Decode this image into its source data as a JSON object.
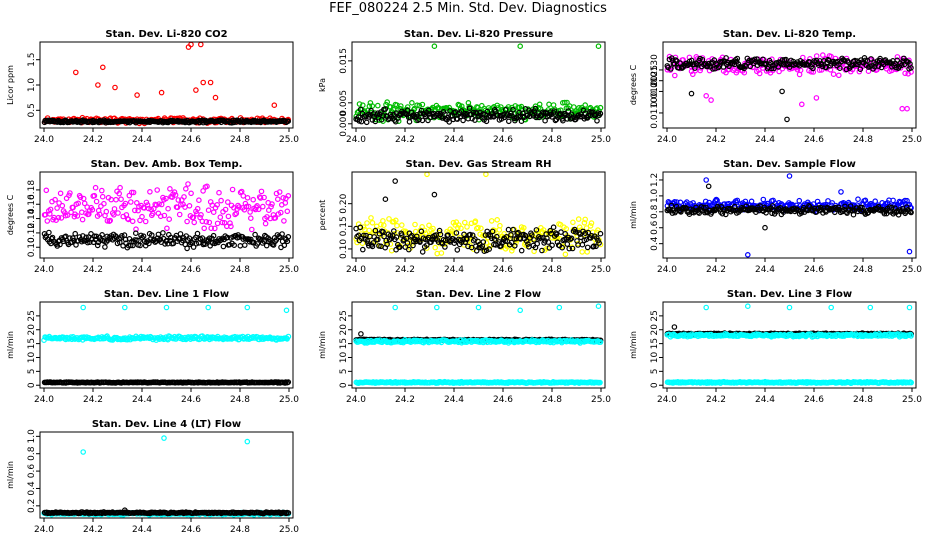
{
  "title": "FEF_080224  2.5 Min. Std. Dev. Diagnostics",
  "chart_data": [
    {
      "type": "scatter",
      "title": "Stan. Dev. Li-820 CO2",
      "ylabel": "Licor ppm",
      "xlim": [
        24.0,
        25.0
      ],
      "ylim": [
        0.15,
        1.85
      ],
      "xticks": [
        "24.0",
        "24.2",
        "24.4",
        "24.6",
        "24.8",
        "25.0"
      ],
      "yticks": [
        {
          "v": 0.5,
          "l": "0.5"
        },
        {
          "v": 1.0,
          "l": "1.0"
        },
        {
          "v": 1.5,
          "l": "1.5"
        }
      ],
      "series": [
        {
          "name": "a",
          "color": "#ff0000",
          "base": 0.3,
          "spread": 0.06,
          "outliers": [
            {
              "x": 24.13,
              "y": 1.25
            },
            {
              "x": 24.22,
              "y": 1.0
            },
            {
              "x": 24.24,
              "y": 1.35
            },
            {
              "x": 24.29,
              "y": 0.95
            },
            {
              "x": 24.38,
              "y": 0.8
            },
            {
              "x": 24.48,
              "y": 0.85
            },
            {
              "x": 24.59,
              "y": 1.75
            },
            {
              "x": 24.6,
              "y": 1.8
            },
            {
              "x": 24.62,
              "y": 0.9
            },
            {
              "x": 24.64,
              "y": 1.8
            },
            {
              "x": 24.65,
              "y": 1.05
            },
            {
              "x": 24.68,
              "y": 1.05
            },
            {
              "x": 24.7,
              "y": 0.75
            },
            {
              "x": 24.94,
              "y": 0.6
            }
          ],
          "seed": 11
        },
        {
          "name": "b",
          "color": "#000000",
          "base": 0.28,
          "spread": 0.03,
          "outliers": [],
          "seed": 12
        }
      ]
    },
    {
      "type": "scatter",
      "title": "Stan. Dev. Li-820 Pressure",
      "ylabel": "kPa",
      "xlim": [
        24.0,
        25.0
      ],
      "ylim": [
        -0.001,
        0.0195
      ],
      "xticks": [
        "24.0",
        "24.2",
        "24.4",
        "24.6",
        "24.8",
        "25.0"
      ],
      "yticks": [
        {
          "v": 0.0,
          "l": "0.000"
        },
        {
          "v": 0.005,
          "l": "0.005"
        },
        {
          "v": 0.015,
          "l": "0.015"
        }
      ],
      "series": [
        {
          "name": "a",
          "color": "#00bb00",
          "base": 0.003,
          "spread": 0.0025,
          "outliers": [
            {
              "x": 24.32,
              "y": 0.0185
            },
            {
              "x": 24.67,
              "y": 0.0185
            },
            {
              "x": 24.99,
              "y": 0.0185
            }
          ],
          "seed": 21
        },
        {
          "name": "b",
          "color": "#000000",
          "base": 0.002,
          "spread": 0.0018,
          "outliers": [],
          "seed": 22
        }
      ]
    },
    {
      "type": "scatter",
      "title": "Stan. Dev. Li-820 Temp.",
      "ylabel": "degrees C",
      "xlim": [
        24.0,
        25.0
      ],
      "ylim": [
        0.0103,
        0.0143
      ],
      "xticks": [
        "24.0",
        "24.2",
        "24.4",
        "24.6",
        "24.8",
        "25.0"
      ],
      "yticks": [
        {
          "v": 0.011,
          "l": "0.0110"
        },
        {
          "v": 0.012,
          "l": "0.0120"
        },
        {
          "v": 0.0125,
          "l": "0.0125"
        },
        {
          "v": 0.013,
          "l": "0.0130"
        }
      ],
      "series": [
        {
          "name": "a",
          "color": "#ff00ff",
          "base": 0.0132,
          "spread": 0.0005,
          "outliers": [
            {
              "x": 24.16,
              "y": 0.0118
            },
            {
              "x": 24.18,
              "y": 0.0116
            },
            {
              "x": 24.55,
              "y": 0.0114
            },
            {
              "x": 24.61,
              "y": 0.0117
            },
            {
              "x": 24.96,
              "y": 0.0112
            },
            {
              "x": 24.98,
              "y": 0.0112
            }
          ],
          "seed": 31
        },
        {
          "name": "b",
          "color": "#000000",
          "base": 0.0133,
          "spread": 0.0003,
          "outliers": [
            {
              "x": 24.1,
              "y": 0.0119
            },
            {
              "x": 24.49,
              "y": 0.0107
            },
            {
              "x": 24.47,
              "y": 0.012
            }
          ],
          "seed": 32
        }
      ]
    },
    {
      "type": "scatter",
      "title": "Stan. Dev. Amb. Box Temp.",
      "ylabel": "degrees C",
      "xlim": [
        24.0,
        25.0
      ],
      "ylim": [
        0.085,
        0.205
      ],
      "xticks": [
        "24.0",
        "24.2",
        "24.4",
        "24.6",
        "24.8",
        "25.0"
      ],
      "yticks": [
        {
          "v": 0.1,
          "l": "0.10"
        },
        {
          "v": 0.12,
          "l": "0.12"
        },
        {
          "v": 0.14,
          "l": "0.14"
        },
        {
          "v": 0.16,
          "l": "0.16"
        },
        {
          "v": 0.18,
          "l": "0.18"
        }
      ],
      "series": [
        {
          "name": "a",
          "color": "#ff00ff",
          "base": 0.155,
          "spread": 0.035,
          "outliers": [],
          "seed": 41
        },
        {
          "name": "b",
          "color": "#000000",
          "base": 0.11,
          "spread": 0.012,
          "outliers": [],
          "seed": 42
        }
      ]
    },
    {
      "type": "scatter",
      "title": "Stan. Dev. Gas Stream RH",
      "ylabel": "percent",
      "xlim": [
        24.0,
        25.0
      ],
      "ylim": [
        0.08,
        0.27
      ],
      "xticks": [
        "24.0",
        "24.2",
        "24.4",
        "24.6",
        "24.8",
        "25.0"
      ],
      "yticks": [
        {
          "v": 0.1,
          "l": "0.10"
        },
        {
          "v": 0.15,
          "l": "0.15"
        },
        {
          "v": 0.2,
          "l": "0.20"
        }
      ],
      "series": [
        {
          "name": "a",
          "color": "#ffff00",
          "base": 0.13,
          "spread": 0.045,
          "outliers": [
            {
              "x": 24.29,
              "y": 0.265
            },
            {
              "x": 24.53,
              "y": 0.265
            }
          ],
          "seed": 51
        },
        {
          "name": "b",
          "color": "#000000",
          "base": 0.12,
          "spread": 0.03,
          "outliers": [
            {
              "x": 24.16,
              "y": 0.25
            },
            {
              "x": 24.12,
              "y": 0.21
            },
            {
              "x": 24.32,
              "y": 0.22
            }
          ],
          "seed": 52
        }
      ]
    },
    {
      "type": "scatter",
      "title": "Stan. Dev. Sample Flow",
      "ylabel": "ml/min",
      "xlim": [
        24.0,
        25.0
      ],
      "ylim": [
        0.22,
        1.3
      ],
      "xticks": [
        "24.0",
        "24.2",
        "24.4",
        "24.6",
        "24.8",
        "25.0"
      ],
      "yticks": [
        {
          "v": 0.4,
          "l": "0.4"
        },
        {
          "v": 0.6,
          "l": "0.6"
        },
        {
          "v": 0.8,
          "l": "0.8"
        },
        {
          "v": 1.0,
          "l": "1.0"
        },
        {
          "v": 1.2,
          "l": "1.2"
        }
      ],
      "series": [
        {
          "name": "a",
          "color": "#0000ff",
          "base": 0.88,
          "spread": 0.08,
          "outliers": [
            {
              "x": 24.16,
              "y": 1.2
            },
            {
              "x": 24.5,
              "y": 1.25
            },
            {
              "x": 24.33,
              "y": 0.26
            },
            {
              "x": 24.99,
              "y": 0.3
            },
            {
              "x": 24.71,
              "y": 1.05
            }
          ],
          "seed": 61
        },
        {
          "name": "b",
          "color": "#000000",
          "base": 0.82,
          "spread": 0.06,
          "outliers": [
            {
              "x": 24.17,
              "y": 1.12
            },
            {
              "x": 24.4,
              "y": 0.6
            }
          ],
          "seed": 62
        }
      ]
    },
    {
      "type": "scatter",
      "title": "Stan. Dev. Line 1 Flow",
      "ylabel": "ml/min",
      "xlim": [
        24.0,
        25.0
      ],
      "ylim": [
        -1,
        30
      ],
      "xticks": [
        "24.0",
        "24.2",
        "24.4",
        "24.6",
        "24.8",
        "25.0"
      ],
      "yticks": [
        {
          "v": 0,
          "l": "0"
        },
        {
          "v": 5,
          "l": "5"
        },
        {
          "v": 10,
          "l": "10"
        },
        {
          "v": 15,
          "l": "15"
        },
        {
          "v": 20,
          "l": "20"
        },
        {
          "v": 25,
          "l": "25"
        }
      ],
      "series": [
        {
          "name": "a",
          "color": "#00ffff",
          "base": 17,
          "spread": 0.8,
          "outliers": [
            {
              "x": 24.16,
              "y": 28
            },
            {
              "x": 24.33,
              "y": 28
            },
            {
              "x": 24.5,
              "y": 28
            },
            {
              "x": 24.67,
              "y": 28
            },
            {
              "x": 24.83,
              "y": 28
            },
            {
              "x": 24.99,
              "y": 27
            }
          ],
          "seed": 71
        },
        {
          "name": "b",
          "color": "#000000",
          "base": 1,
          "spread": 0.2,
          "outliers": [],
          "seed": 72
        }
      ]
    },
    {
      "type": "scatter",
      "title": "Stan. Dev. Line 2 Flow",
      "ylabel": "ml/min",
      "xlim": [
        24.0,
        25.0
      ],
      "ylim": [
        -1,
        30
      ],
      "xticks": [
        "24.0",
        "24.2",
        "24.4",
        "24.6",
        "24.8",
        "25.0"
      ],
      "yticks": [
        {
          "v": 0,
          "l": "0"
        },
        {
          "v": 5,
          "l": "5"
        },
        {
          "v": 10,
          "l": "10"
        },
        {
          "v": 15,
          "l": "15"
        },
        {
          "v": 20,
          "l": "20"
        },
        {
          "v": 25,
          "l": "25"
        }
      ],
      "series": [
        {
          "name": "a",
          "color": "#00ffff",
          "base": 1,
          "spread": 0.3,
          "outliers": [
            {
              "x": 24.16,
              "y": 28
            },
            {
              "x": 24.33,
              "y": 28
            },
            {
              "x": 24.5,
              "y": 28
            },
            {
              "x": 24.67,
              "y": 27
            },
            {
              "x": 24.83,
              "y": 28
            },
            {
              "x": 24.99,
              "y": 28.5
            }
          ],
          "seed": 81
        },
        {
          "name": "b",
          "color": "#000000",
          "base": 16.3,
          "spread": 0.3,
          "outliers": [
            {
              "x": 24.02,
              "y": 18.5
            }
          ],
          "seed": 82
        },
        {
          "name": "c",
          "color": "#00ffff",
          "base": 15.8,
          "spread": 0.6,
          "outliers": [],
          "seed": 83
        }
      ]
    },
    {
      "type": "scatter",
      "title": "Stan. Dev. Line 3 Flow",
      "ylabel": "ml/min",
      "xlim": [
        24.0,
        25.0
      ],
      "ylim": [
        -1,
        30
      ],
      "xticks": [
        "24.0",
        "24.2",
        "24.4",
        "24.6",
        "24.8",
        "25.0"
      ],
      "yticks": [
        {
          "v": 0,
          "l": "0"
        },
        {
          "v": 5,
          "l": "5"
        },
        {
          "v": 10,
          "l": "10"
        },
        {
          "v": 15,
          "l": "15"
        },
        {
          "v": 20,
          "l": "20"
        },
        {
          "v": 25,
          "l": "25"
        }
      ],
      "series": [
        {
          "name": "a",
          "color": "#00ffff",
          "base": 1,
          "spread": 0.3,
          "outliers": [
            {
              "x": 24.16,
              "y": 28
            },
            {
              "x": 24.33,
              "y": 28.5
            },
            {
              "x": 24.5,
              "y": 28
            },
            {
              "x": 24.67,
              "y": 28
            },
            {
              "x": 24.83,
              "y": 28
            },
            {
              "x": 24.99,
              "y": 28
            }
          ],
          "seed": 91
        },
        {
          "name": "b",
          "color": "#000000",
          "base": 18.5,
          "spread": 0.3,
          "outliers": [
            {
              "x": 24.03,
              "y": 21
            }
          ],
          "seed": 92
        },
        {
          "name": "c",
          "color": "#00ffff",
          "base": 18,
          "spread": 0.6,
          "outliers": [],
          "seed": 93
        }
      ]
    },
    {
      "type": "scatter",
      "title": "Stan. Dev. Line 4 (LT) Flow",
      "ylabel": "ml/min",
      "xlim": [
        24.0,
        25.0
      ],
      "ylim": [
        0.06,
        1.05
      ],
      "xticks": [
        "24.0",
        "24.2",
        "24.4",
        "24.6",
        "24.8",
        "25.0"
      ],
      "yticks": [
        {
          "v": 0.2,
          "l": "0.2"
        },
        {
          "v": 0.4,
          "l": "0.4"
        },
        {
          "v": 0.6,
          "l": "0.6"
        },
        {
          "v": 0.8,
          "l": "0.8"
        },
        {
          "v": 1.0,
          "l": "1.0"
        }
      ],
      "series": [
        {
          "name": "a",
          "color": "#00ffff",
          "base": 0.11,
          "spread": 0.015,
          "outliers": [
            {
              "x": 24.16,
              "y": 0.82
            },
            {
              "x": 24.49,
              "y": 0.98
            },
            {
              "x": 24.83,
              "y": 0.94
            }
          ],
          "seed": 101
        },
        {
          "name": "b",
          "color": "#000000",
          "base": 0.12,
          "spread": 0.01,
          "outliers": [
            {
              "x": 24.33,
              "y": 0.15
            }
          ],
          "seed": 102
        }
      ]
    }
  ]
}
